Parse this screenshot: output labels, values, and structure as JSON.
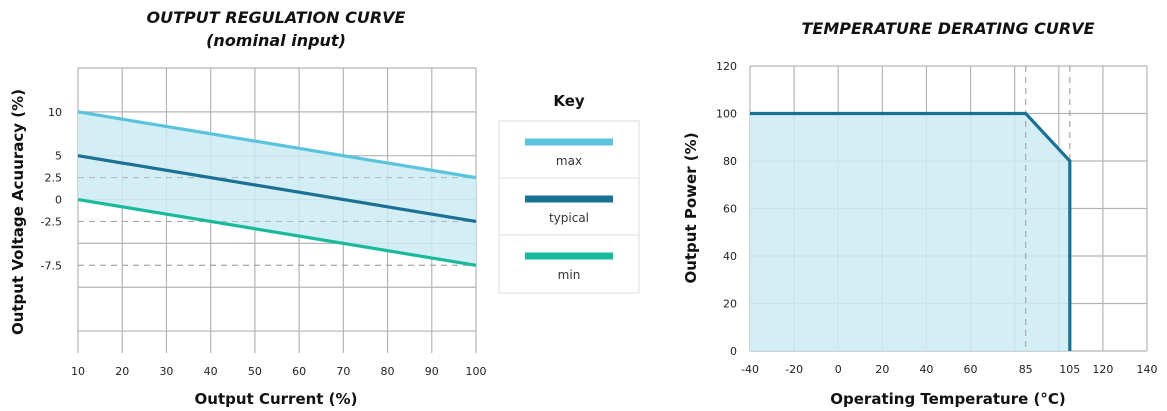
{
  "colors": {
    "max": "#5bc4dd",
    "typical": "#1b7194",
    "min": "#19b99b",
    "fill": "#cdebf3",
    "grid": "#b5b5b5",
    "dash": "#a8a8a8"
  },
  "chart_data": [
    {
      "type": "line",
      "title": "OUTPUT REGULATION CURVE",
      "subtitle": "(nominal input)",
      "xlabel": "Output Current (%)",
      "ylabel": "Output Voltage Acuuracy (%)",
      "xlim": [
        10,
        100
      ],
      "ylim": [
        -17.5,
        15
      ],
      "x_ticks": [
        "10",
        "20",
        "30",
        "40",
        "50",
        "60",
        "70",
        "80",
        "90",
        "100"
      ],
      "y_ticks": [
        {
          "value": 10,
          "label": "10"
        },
        {
          "value": 5,
          "label": "5"
        },
        {
          "value": 2.5,
          "label": "2.5"
        },
        {
          "value": 0,
          "label": "0"
        },
        {
          "value": -2.5,
          "label": "-2.5"
        },
        {
          "value": -7.5,
          "label": "-7.5"
        }
      ],
      "dashed_y": [
        2.5,
        -2.5,
        -7.5
      ],
      "series": [
        {
          "name": "max",
          "x": [
            10,
            100
          ],
          "y": [
            10,
            2.5
          ]
        },
        {
          "name": "typical",
          "x": [
            10,
            100
          ],
          "y": [
            5,
            -2.5
          ]
        },
        {
          "name": "min",
          "x": [
            10,
            100
          ],
          "y": [
            0,
            -7.5
          ]
        }
      ],
      "band": [
        "max",
        "min"
      ],
      "legend": {
        "title": "Key",
        "position": "right",
        "items": [
          "max",
          "typical",
          "min"
        ]
      }
    },
    {
      "type": "area",
      "title": "TEMPERATURE DERATING CURVE",
      "xlabel": "Operating Temperature (°C)",
      "ylabel": "Output Power (%)",
      "xlim": [
        -40,
        140
      ],
      "ylim": [
        0,
        120
      ],
      "x_ticks": [
        "-40",
        "-20",
        "0",
        "20",
        "40",
        "60",
        "85",
        "105",
        "120",
        "140"
      ],
      "y_ticks": [
        "0",
        "20",
        "40",
        "60",
        "80",
        "100",
        "120"
      ],
      "dashed_x": [
        85,
        105
      ],
      "series": [
        {
          "x": [
            -40,
            85,
            105,
            105
          ],
          "y": [
            100,
            100,
            80,
            0
          ]
        }
      ]
    }
  ]
}
